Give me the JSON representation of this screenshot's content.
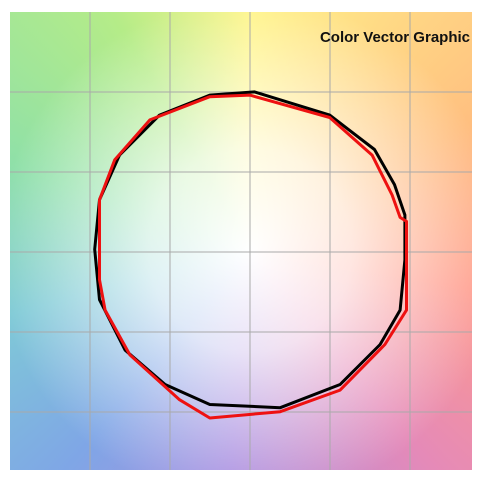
{
  "chart_data": {
    "type": "line",
    "title": "Color Vector Graphic",
    "closed": true,
    "xlim": [
      -3,
      2.78
    ],
    "ylim": [
      -2.73,
      3
    ],
    "series": [
      {
        "color": "#000000",
        "x": [
          0.06,
          1.0,
          1.56,
          1.81,
          1.94,
          1.94,
          1.88,
          1.63,
          1.13,
          0.38,
          -0.5,
          -1.06,
          -1.56,
          -1.88,
          -1.94,
          -1.88,
          -1.63,
          -1.13,
          -0.5
        ],
        "values": [
          2.0,
          1.71,
          1.28,
          0.84,
          0.46,
          -0.1,
          -0.73,
          -1.16,
          -1.66,
          -1.95,
          -1.91,
          -1.66,
          -1.23,
          -0.6,
          0.03,
          0.65,
          1.21,
          1.71,
          1.96
        ]
      },
      {
        "color": "#ee1111",
        "x": [
          0,
          1.0,
          1.53,
          1.78,
          1.88,
          1.96,
          1.96,
          1.69,
          1.13,
          0.38,
          -0.5,
          -0.88,
          -1.5,
          -1.81,
          -1.88,
          -1.88,
          -1.69,
          -1.25,
          -0.5
        ],
        "values": [
          1.96,
          1.68,
          1.21,
          0.71,
          0.43,
          0.38,
          -0.73,
          -1.16,
          -1.73,
          -2.0,
          -2.08,
          -1.85,
          -1.29,
          -0.73,
          -0.35,
          0.65,
          1.15,
          1.65,
          1.94
        ]
      }
    ]
  }
}
